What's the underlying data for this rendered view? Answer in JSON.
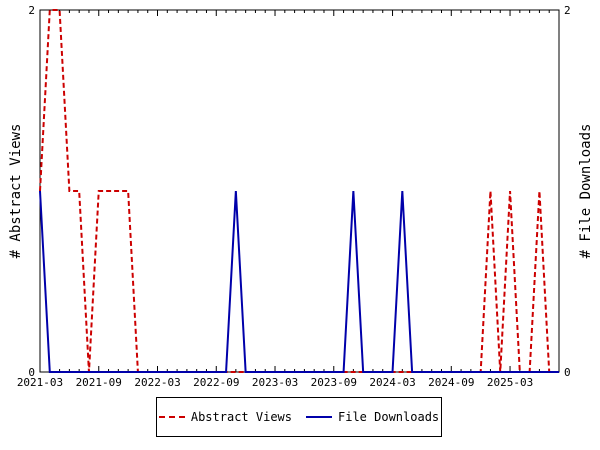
{
  "chart_data": {
    "type": "line",
    "x": [
      "2021-03",
      "2021-04",
      "2021-05",
      "2021-06",
      "2021-07",
      "2021-08",
      "2021-09",
      "2021-10",
      "2021-11",
      "2021-12",
      "2022-01",
      "2022-02",
      "2022-03",
      "2022-04",
      "2022-05",
      "2022-06",
      "2022-07",
      "2022-08",
      "2022-09",
      "2022-10",
      "2022-11",
      "2022-12",
      "2023-01",
      "2023-02",
      "2023-03",
      "2023-04",
      "2023-05",
      "2023-06",
      "2023-07",
      "2023-08",
      "2023-09",
      "2023-10",
      "2023-11",
      "2023-12",
      "2024-01",
      "2024-02",
      "2024-03",
      "2024-04",
      "2024-05",
      "2024-06",
      "2024-07",
      "2024-08",
      "2024-09",
      "2024-10",
      "2024-11",
      "2024-12",
      "2025-01",
      "2025-02",
      "2025-03",
      "2025-04",
      "2025-05",
      "2025-06",
      "2025-07",
      "2025-08"
    ],
    "x_tick_labels": [
      "2021-03",
      "2021-09",
      "2022-03",
      "2022-09",
      "2023-03",
      "2023-09",
      "2024-03",
      "2024-09",
      "2025-03"
    ],
    "y_left": {
      "label": "# Abstract Views",
      "range": [
        0,
        2
      ],
      "ticks": [
        "0",
        "2"
      ]
    },
    "y_right": {
      "label": "# File Downloads",
      "range": [
        0,
        2
      ],
      "ticks": [
        "0",
        "2"
      ]
    },
    "series": [
      {
        "name": "Abstract Views",
        "axis": "left",
        "color": "#cc0000",
        "style": "dashed",
        "values": [
          1,
          2,
          2,
          1,
          1,
          0,
          1,
          1,
          1,
          1,
          0,
          0,
          0,
          0,
          0,
          0,
          0,
          0,
          0,
          0,
          0,
          0,
          0,
          0,
          0,
          0,
          0,
          0,
          0,
          0,
          0,
          0,
          0,
          0,
          0,
          0,
          0,
          0,
          0,
          0,
          0,
          0,
          0,
          0,
          0,
          0,
          1,
          0,
          1,
          0,
          0,
          1,
          0,
          0
        ]
      },
      {
        "name": "File Downloads",
        "axis": "right",
        "color": "#0000aa",
        "style": "solid",
        "values": [
          1,
          0,
          0,
          0,
          0,
          0,
          0,
          0,
          0,
          0,
          0,
          0,
          0,
          0,
          0,
          0,
          0,
          0,
          0,
          0,
          1,
          0,
          0,
          0,
          0,
          0,
          0,
          0,
          0,
          0,
          0,
          0,
          1,
          0,
          0,
          0,
          0,
          1,
          0,
          0,
          0,
          0,
          0,
          0,
          0,
          0,
          0,
          0,
          0,
          0,
          0,
          0,
          0,
          0
        ]
      }
    ],
    "legend": "bottom",
    "grid": false
  }
}
